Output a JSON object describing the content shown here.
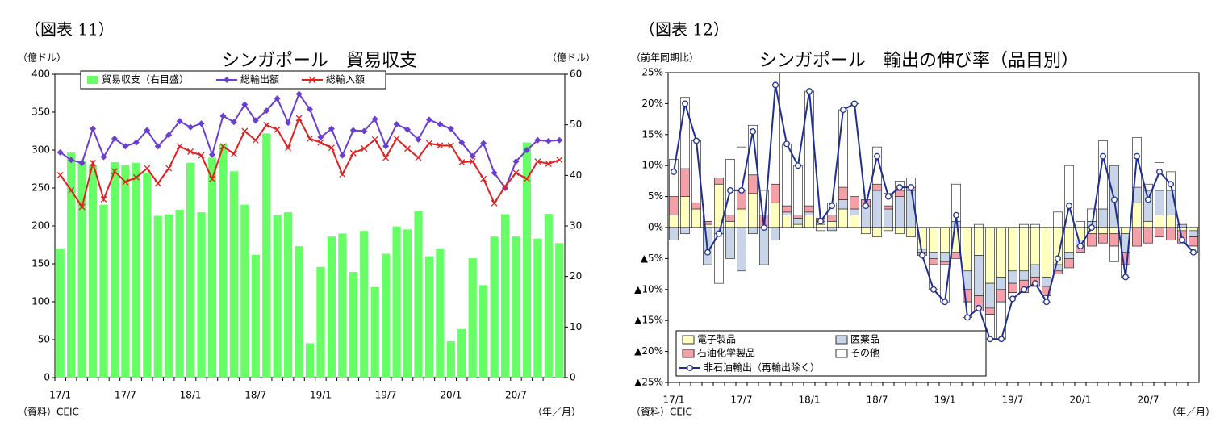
{
  "chart_data": [
    {
      "type": "combo",
      "figure_label": "（図表 11）",
      "title": "シンガポール　貿易収支",
      "y_label": "（億ドル）",
      "y2_label": "（億ドル）",
      "source": "（資料）CEIC",
      "x_unit": "（年／月）",
      "categories": [
        "17/1",
        null,
        null,
        null,
        null,
        null,
        "17/7",
        null,
        null,
        null,
        null,
        null,
        "18/1",
        null,
        null,
        null,
        null,
        null,
        "18/7",
        null,
        null,
        null,
        null,
        null,
        "19/1",
        null,
        null,
        null,
        null,
        null,
        "19/7",
        null,
        null,
        null,
        null,
        null,
        "20/1",
        null,
        null,
        null,
        null,
        null,
        "20/7",
        null,
        null,
        null,
        null
      ],
      "ylim": [
        0,
        400
      ],
      "yticks": [
        0,
        50,
        100,
        150,
        200,
        250,
        300,
        350,
        400
      ],
      "y2lim": [
        0,
        60
      ],
      "y2ticks": [
        0,
        10,
        20,
        30,
        40,
        50,
        60
      ],
      "series": [
        {
          "name": "貿易収支（右目盛）",
          "type": "bar",
          "axis": "y2",
          "color": "#66ff66",
          "values": [
            25.5,
            44.5,
            42.8,
            42,
            34.2,
            42.6,
            42,
            42.5,
            40.5,
            32,
            32.3,
            33.2,
            42.5,
            32.7,
            43.5,
            46.2,
            40.8,
            34.2,
            24.3,
            48.3,
            32.1,
            32.7,
            26,
            6.8,
            21.9,
            27.9,
            28.5,
            20.9,
            29,
            17.9,
            24.5,
            29.9,
            29.3,
            33,
            24,
            25.5,
            7.2,
            9.6,
            23.6,
            18.3,
            27.9,
            32.3,
            27.9,
            46.5,
            27.5,
            32.4,
            26.6
          ]
        },
        {
          "name": "総輸出額",
          "type": "line",
          "marker": "diamond",
          "color": "#6a3ed0",
          "values": [
            297,
            287,
            283,
            328,
            291,
            315,
            305,
            310,
            326,
            305,
            320,
            338,
            330,
            335,
            294,
            345,
            337,
            360,
            339,
            352,
            368,
            336,
            374,
            354,
            317,
            328,
            293,
            326,
            325,
            341,
            305,
            334,
            327,
            314,
            340,
            334,
            328,
            310,
            292,
            309,
            270,
            250,
            285,
            300,
            313,
            312,
            313
          ]
        },
        {
          "name": "総輸入額",
          "type": "line",
          "marker": "cross",
          "color": "#e02020",
          "values": [
            267,
            247,
            225,
            283,
            235,
            272,
            258,
            264,
            276,
            256,
            276,
            305,
            298,
            293,
            262,
            305,
            295,
            325,
            313,
            333,
            327,
            303,
            342,
            315,
            310,
            303,
            268,
            296,
            302,
            314,
            290,
            315,
            302,
            290,
            309,
            306,
            306,
            284,
            285,
            262,
            230,
            252,
            270,
            262,
            285,
            282,
            287
          ]
        }
      ]
    },
    {
      "type": "stacked_bar",
      "figure_label": "（図表 12）",
      "title": "シンガポール　輸出の伸び率（品目別）",
      "y_label": "（前年同期比）",
      "source": "（資料）CEIC",
      "x_unit": "（年／月）",
      "categories": [
        "17/1",
        null,
        null,
        null,
        null,
        null,
        "17/7",
        null,
        null,
        null,
        null,
        null,
        "18/1",
        null,
        null,
        null,
        null,
        null,
        "18/7",
        null,
        null,
        null,
        null,
        null,
        "19/1",
        null,
        null,
        null,
        null,
        null,
        "19/7",
        null,
        null,
        null,
        null,
        null,
        "20/1",
        null,
        null,
        null,
        null,
        null,
        "20/7",
        null,
        null,
        null,
        null
      ],
      "ylim": [
        -25,
        25
      ],
      "yticks": [
        {
          "value": -25,
          "label": "▲25%"
        },
        {
          "value": -20,
          "label": "▲20%"
        },
        {
          "value": -15,
          "label": "▲15%"
        },
        {
          "value": -10,
          "label": "▲10%"
        },
        {
          "value": -5,
          "label": "▲5%"
        },
        {
          "value": 0,
          "label": "0%"
        },
        {
          "value": 5,
          "label": "5%"
        },
        {
          "value": 10,
          "label": "10%"
        },
        {
          "value": 15,
          "label": "15%"
        },
        {
          "value": 20,
          "label": "20%"
        },
        {
          "value": 25,
          "label": "25%"
        }
      ],
      "series": [
        {
          "name": "電子製品",
          "type": "bar",
          "color": "#ffffc0",
          "values": [
            2,
            5,
            3,
            0.5,
            7,
            1,
            3,
            5.5,
            0,
            4,
            2,
            0.5,
            2,
            0.5,
            1,
            3,
            2,
            -1,
            -1.5,
            -0.5,
            -1,
            -1.5,
            -3.5,
            -4,
            -4,
            -4,
            -7,
            -4.5,
            -9,
            -8,
            -7,
            -7,
            -6,
            -8,
            -6,
            -4,
            -2,
            -1,
            -1,
            -1,
            -1,
            4,
            1,
            2,
            2,
            -0.5,
            -0.5
          ]
        },
        {
          "name": "医薬品",
          "type": "bar",
          "color": "#c8d4e8",
          "values": [
            -2,
            -1,
            0,
            -6,
            -1,
            -5,
            -7,
            -1,
            -6,
            -2,
            0.5,
            1,
            0.5,
            0.5,
            -0.5,
            1.5,
            1,
            3.5,
            6,
            3,
            5,
            6,
            -0.5,
            -1,
            -1.5,
            1,
            -3,
            -6.5,
            -4,
            -2,
            -2,
            -1.5,
            -2,
            -1.5,
            -1,
            -1,
            -1,
            1,
            3,
            10,
            -3,
            2.5,
            5,
            4,
            4,
            0.5,
            -1
          ]
        },
        {
          "name": "石油化学製品",
          "type": "bar",
          "color": "#f4a0a8",
          "values": [
            3,
            4.5,
            1,
            0.5,
            1,
            1,
            3,
            3,
            2,
            3,
            1,
            0.5,
            1,
            0.5,
            1,
            2,
            2,
            1,
            1,
            0.5,
            1,
            0.5,
            -0.5,
            -1,
            -0.5,
            -1,
            -2,
            -2.5,
            -1,
            -2,
            -1.5,
            -2,
            -1.5,
            -1.5,
            -0.5,
            -1.5,
            -1,
            -2,
            -1.5,
            -2,
            -2,
            -3,
            -2.5,
            -1.5,
            -2,
            -2,
            -1.5
          ]
        },
        {
          "name": "その他",
          "type": "bar",
          "color": "#ffffff",
          "values": [
            6,
            11.5,
            10,
            1,
            -8,
            9,
            7,
            8,
            4,
            18,
            10,
            8,
            18.5,
            -0.5,
            2,
            12.5,
            15,
            0,
            6,
            2,
            1.5,
            1.5,
            0,
            -4,
            -6,
            6,
            -2.5,
            0.5,
            -4,
            -6,
            -1,
            0.5,
            0.5,
            -1,
            2.5,
            10,
            1,
            2,
            11,
            -2.5,
            -2,
            8,
            1,
            4.5,
            3,
            0,
            -1
          ]
        },
        {
          "name": "非石油輸出（再輸出除く）",
          "type": "line",
          "color": "#1f2f8f",
          "values": [
            9,
            20,
            14,
            -4,
            -1,
            6,
            6,
            15.5,
            0,
            23,
            13.5,
            10,
            22,
            1,
            3.5,
            19,
            20,
            3.5,
            11.5,
            5,
            6.5,
            6.5,
            -4.5,
            -10,
            -12,
            2,
            -14.5,
            -13,
            -18,
            -18,
            -11.5,
            -10,
            -9,
            -12,
            -5,
            3.5,
            -3,
            0,
            11.5,
            4.5,
            -8,
            11.5,
            4.5,
            9,
            7,
            -2,
            -4
          ]
        }
      ]
    }
  ]
}
